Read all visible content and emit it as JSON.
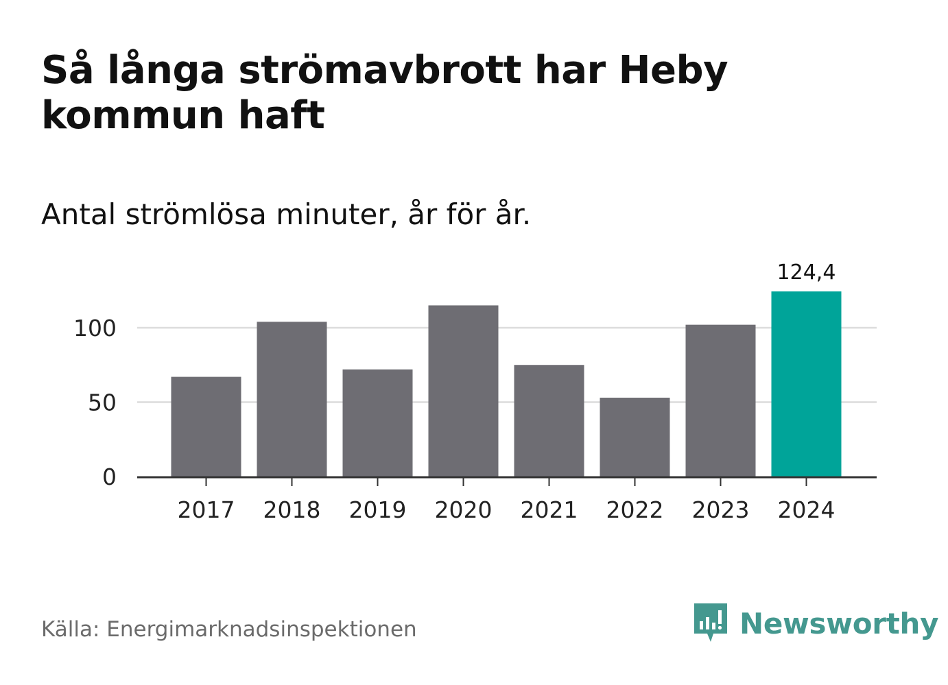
{
  "header": {
    "title": "Så långa strömavbrott har Heby kommun haft",
    "subtitle": "Antal strömlösa minuter, år för år."
  },
  "footer": {
    "source": "Källa: Energimarknadsinspektionen",
    "brand": "Newsworthy",
    "brand_icon": "newsworthy-logo-icon"
  },
  "colors": {
    "bar_default": "#6e6d73",
    "bar_highlight": "#00a499",
    "gridline": "#dcdcdc",
    "axis": "#333333",
    "brand": "#44988f"
  },
  "chart_data": {
    "type": "bar",
    "categories": [
      "2017",
      "2018",
      "2019",
      "2020",
      "2021",
      "2022",
      "2023",
      "2024"
    ],
    "values": [
      67,
      104,
      72,
      115,
      75,
      53,
      102,
      124.4
    ],
    "highlight_index": 7,
    "data_labels": [
      {
        "index": 7,
        "text": "124,4"
      }
    ],
    "y_ticks": [
      0,
      50,
      100
    ],
    "y_tick_labels": [
      "0",
      "50",
      "100"
    ],
    "ylim": [
      0,
      124.4
    ],
    "grid": true,
    "legend": false
  }
}
